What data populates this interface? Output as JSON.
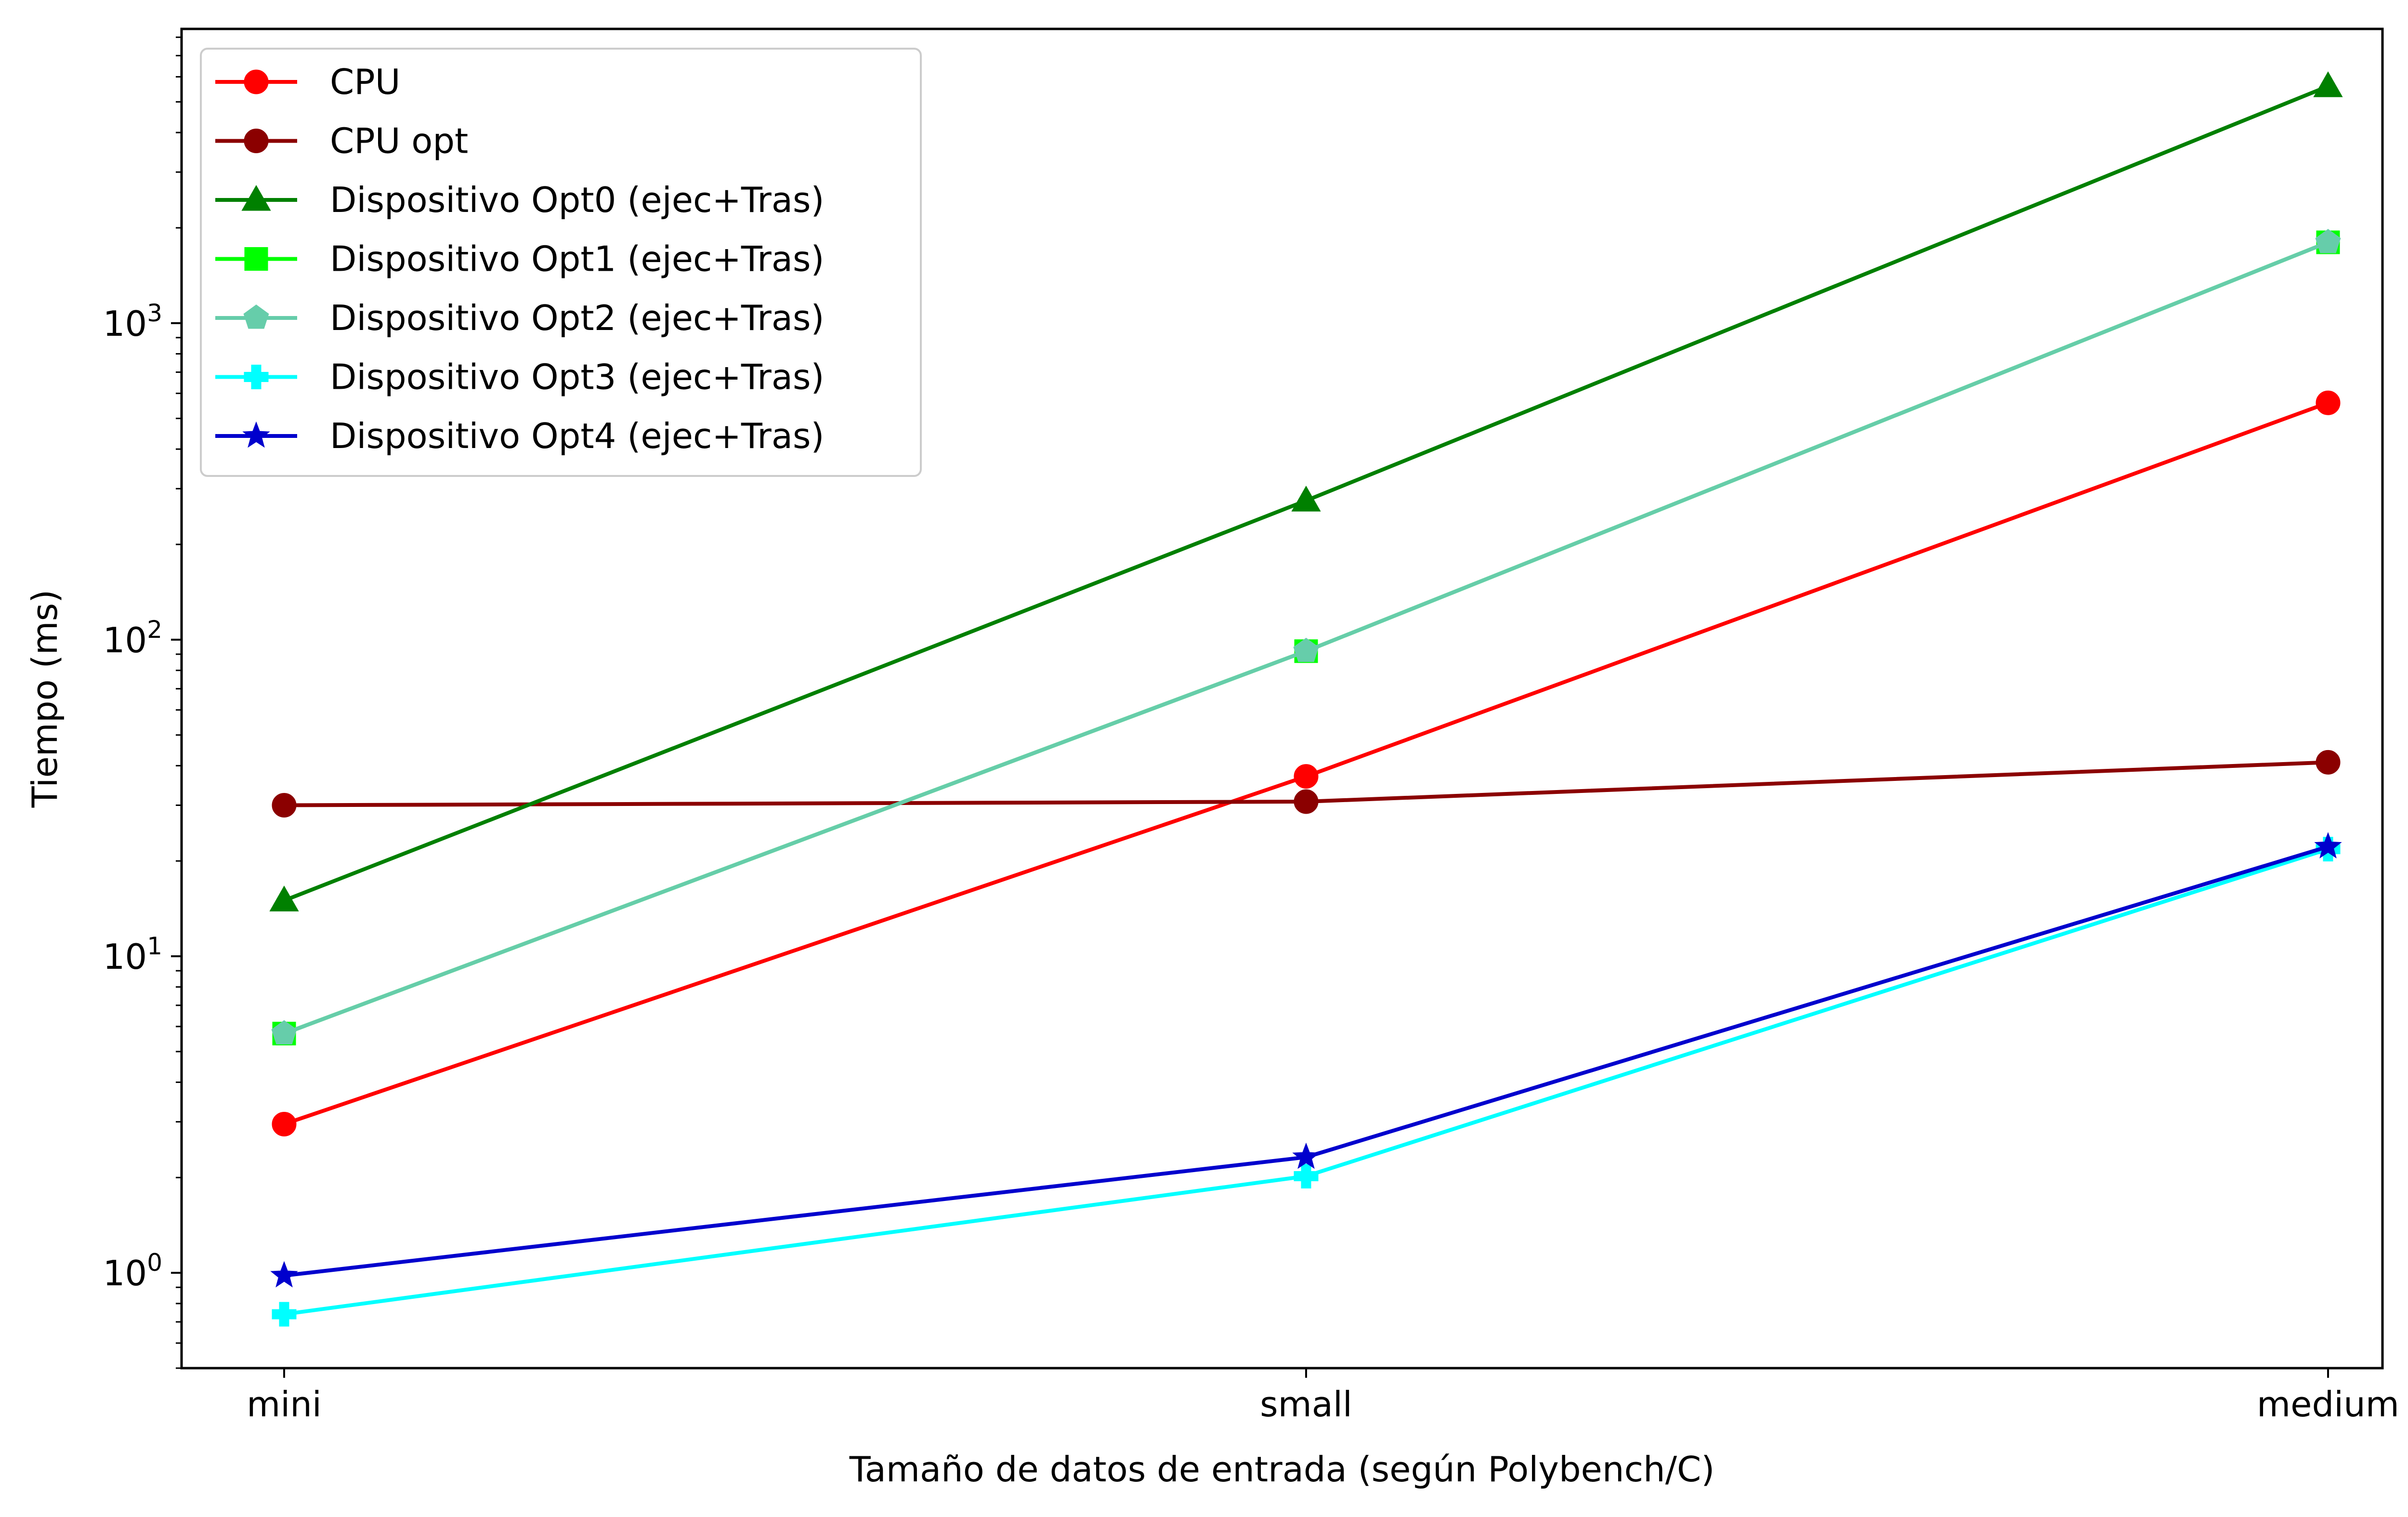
{
  "chart_data": {
    "type": "line",
    "title": "",
    "xlabel": "Tamaño de datos de entrada (según Polybench/C)",
    "ylabel": "Tiempo (ms)",
    "yscale": "log",
    "ylim": [
      0.5,
      8500
    ],
    "categories": [
      "mini",
      "small",
      "medium"
    ],
    "y_ticks": [
      {
        "value": 1,
        "base": "10",
        "exp": "0"
      },
      {
        "value": 10,
        "base": "10",
        "exp": "1"
      },
      {
        "value": 100,
        "base": "10",
        "exp": "2"
      },
      {
        "value": 1000,
        "base": "10",
        "exp": "3"
      }
    ],
    "grid": false,
    "legend_position": "top-left",
    "series": [
      {
        "name": "CPU",
        "color": "#ff0000",
        "marker": "circle",
        "values": [
          2.95,
          37,
          560
        ]
      },
      {
        "name": "CPU opt",
        "color": "#8b0000",
        "marker": "circle",
        "values": [
          30,
          30.8,
          41
        ]
      },
      {
        "name": "Dispositivo Opt0 (ejec+Tras)",
        "color": "#008000",
        "marker": "triangle",
        "values": [
          15,
          275,
          5600
        ]
      },
      {
        "name": "Dispositivo Opt1 (ejec+Tras)",
        "color": "#00ff00",
        "marker": "square",
        "values": [
          5.7,
          92,
          1800
        ]
      },
      {
        "name": "Dispositivo Opt2 (ejec+Tras)",
        "color": "#66cdaa",
        "marker": "pentagon",
        "values": [
          5.7,
          92,
          1800
        ]
      },
      {
        "name": "Dispositivo Opt3 (ejec+Tras)",
        "color": "#00ffff",
        "marker": "plus",
        "values": [
          0.74,
          2.02,
          21.8
        ]
      },
      {
        "name": "Dispositivo Opt4 (ejec+Tras)",
        "color": "#0000cd",
        "marker": "star",
        "values": [
          0.98,
          2.32,
          22.2
        ]
      }
    ]
  }
}
